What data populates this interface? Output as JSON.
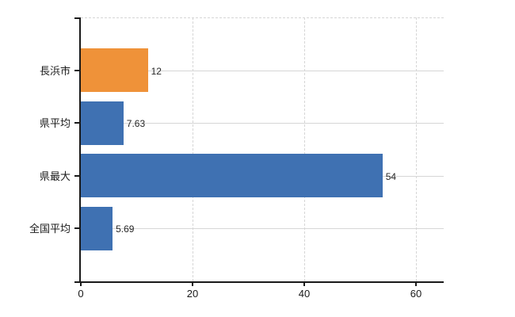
{
  "chart_data": {
    "type": "bar",
    "orientation": "horizontal",
    "title": "",
    "legend": "none",
    "categories": [
      "長浜市",
      "県平均",
      "県最大",
      "全国平均"
    ],
    "values": [
      12,
      7.63,
      54,
      5.69
    ],
    "value_labels": [
      "12",
      "7.63",
      "54",
      "5.69"
    ],
    "bar_colors": [
      "#ef9239",
      "#3f71b2",
      "#3f71b2",
      "#3f71b2"
    ],
    "x_ticks": [
      0,
      20,
      40,
      60
    ],
    "x_tick_labels": [
      "0",
      "20",
      "40",
      "60"
    ],
    "xlim": [
      0,
      65
    ],
    "grid": {
      "vertical_style": "dashed",
      "horizontal_style": "solid",
      "top_border_style": "dashed",
      "color": "#d6d6d6"
    },
    "colors": {
      "axis": "#1a1a1a",
      "text": "#1a1a1a",
      "value_text": "#262626",
      "background": "#ffffff"
    }
  }
}
